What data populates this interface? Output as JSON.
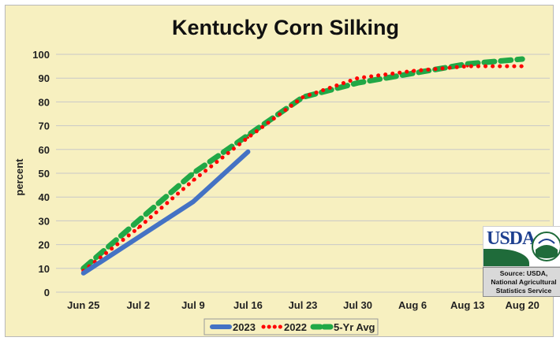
{
  "chart_data": {
    "type": "line",
    "title": "Kentucky Corn Silking",
    "xlabel": "",
    "ylabel": "percent",
    "categories": [
      "Jun 25",
      "Jul 2",
      "Jul 9",
      "Jul 16",
      "Jul 23",
      "Jul 30",
      "Aug 6",
      "Aug 13",
      "Aug 20"
    ],
    "ylim": [
      0,
      100
    ],
    "yticks": [
      0,
      10,
      20,
      30,
      40,
      50,
      60,
      70,
      80,
      90,
      100
    ],
    "grid": true,
    "legend_position": "bottom",
    "series": [
      {
        "name": "2023",
        "color": "#4472c4",
        "style": "solid",
        "values": [
          8,
          23,
          38,
          59,
          null,
          null,
          null,
          null,
          null
        ]
      },
      {
        "name": "2022",
        "color": "#ff0000",
        "style": "dotted",
        "values": [
          9,
          27,
          47,
          65,
          82,
          90,
          93,
          95,
          95
        ]
      },
      {
        "name": "5-Yr Avg",
        "color": "#21a846",
        "style": "dashed",
        "values": [
          10,
          30,
          50,
          66,
          82,
          88,
          92,
          96,
          98
        ]
      }
    ]
  },
  "usda": {
    "logo_text": "USDA",
    "seal_text": "AGRICULTURE COUNTS",
    "source_line1": "Source: USDA,",
    "source_line2": "National Agricultural",
    "source_line3": "Statistics Service"
  }
}
